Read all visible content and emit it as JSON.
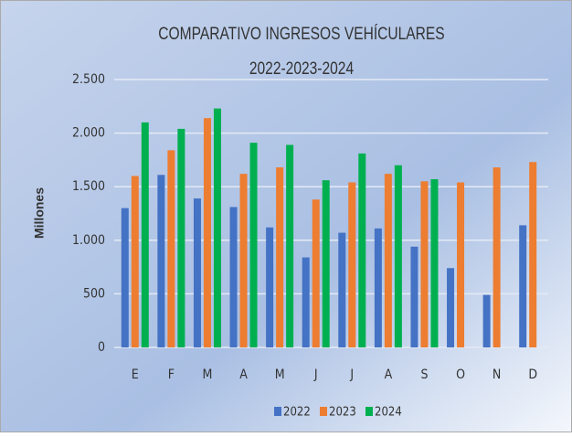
{
  "chart_data": {
    "type": "bar",
    "title": "COMPARATIVO INGRESOS VEHÍCULARES",
    "subtitle": "2022-2023-2024",
    "ylabel": "Millones",
    "categories": [
      "E",
      "F",
      "M",
      "A",
      "M",
      "J",
      "J",
      "A",
      "S",
      "O",
      "N",
      "D"
    ],
    "series": [
      {
        "name": "2022",
        "color": "#4472c4",
        "values": [
          1300,
          1610,
          1390,
          1310,
          1120,
          840,
          1070,
          1110,
          940,
          740,
          490,
          1140
        ]
      },
      {
        "name": "2023",
        "color": "#ed7d31",
        "values": [
          1600,
          1840,
          2140,
          1620,
          1680,
          1380,
          1540,
          1620,
          1550,
          1540,
          1680,
          1730
        ]
      },
      {
        "name": "2024",
        "color": "#00b050",
        "values": [
          2100,
          2040,
          2230,
          1910,
          1890,
          1560,
          1810,
          1700,
          1570,
          null,
          null,
          null
        ]
      }
    ],
    "ylim": [
      0,
      2500
    ],
    "yticks": [
      0,
      500,
      {
        "value": 1000,
        "label": "1.000"
      },
      {
        "value": 1500,
        "label": "1.500"
      },
      {
        "value": 2000,
        "label": "2.000"
      },
      {
        "value": 2500,
        "label": "2.500"
      }
    ],
    "grid": true,
    "legend": "bottom"
  }
}
